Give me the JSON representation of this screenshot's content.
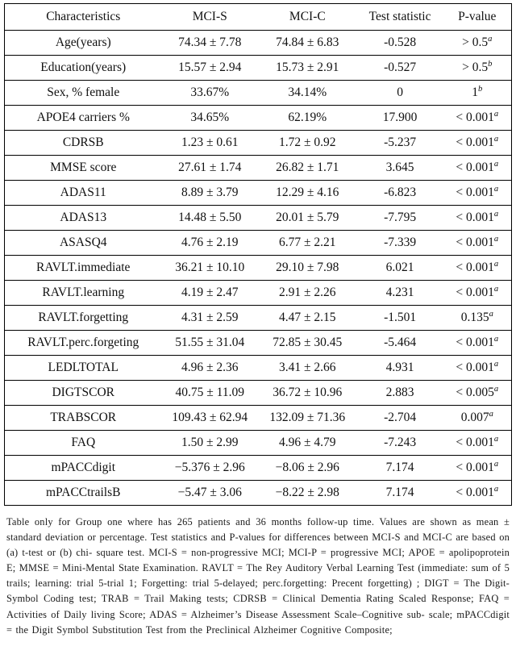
{
  "table": {
    "headers": [
      "Characteristics",
      "MCI-S",
      "MCI-C",
      "Test statistic",
      "P-value"
    ],
    "rows": [
      {
        "label": "Age(years)",
        "mci_s": "74.34 ± 7.78",
        "mci_c": "74.84 ± 6.83",
        "stat": "-0.528",
        "p": "> 0.5",
        "p_sup": "a"
      },
      {
        "label": "Education(years)",
        "mci_s": "15.57 ± 2.94",
        "mci_c": "15.73 ± 2.91",
        "stat": "-0.527",
        "p": "> 0.5",
        "p_sup": "b"
      },
      {
        "label": "Sex, % female",
        "mci_s": "33.67%",
        "mci_c": "34.14%",
        "stat": "0",
        "p": "1",
        "p_sup": "b"
      },
      {
        "label": "APOE4 carriers %",
        "mci_s": "34.65%",
        "mci_c": "62.19%",
        "stat": "17.900",
        "p": "< 0.001",
        "p_sup": "a"
      },
      {
        "label": "CDRSB",
        "mci_s": "1.23 ± 0.61",
        "mci_c": "1.72 ± 0.92",
        "stat": "-5.237",
        "p": "< 0.001",
        "p_sup": "a"
      },
      {
        "label": "MMSE score",
        "mci_s": "27.61 ± 1.74",
        "mci_c": "26.82 ± 1.71",
        "stat": "3.645",
        "p": "< 0.001",
        "p_sup": "a"
      },
      {
        "label": "ADAS11",
        "mci_s": "8.89 ± 3.79",
        "mci_c": "12.29 ± 4.16",
        "stat": "-6.823",
        "p": "< 0.001",
        "p_sup": "a"
      },
      {
        "label": "ADAS13",
        "mci_s": "14.48 ± 5.50",
        "mci_c": "20.01 ± 5.79",
        "stat": "-7.795",
        "p": "< 0.001",
        "p_sup": "a"
      },
      {
        "label": "ASASQ4",
        "mci_s": "4.76 ± 2.19",
        "mci_c": "6.77 ± 2.21",
        "stat": "-7.339",
        "p": "< 0.001",
        "p_sup": "a"
      },
      {
        "label": "RAVLT.immediate",
        "mci_s": "36.21 ± 10.10",
        "mci_c": "29.10 ± 7.98",
        "stat": "6.021",
        "p": "< 0.001",
        "p_sup": "a"
      },
      {
        "label": "RAVLT.learning",
        "mci_s": "4.19 ± 2.47",
        "mci_c": "2.91 ± 2.26",
        "stat": "4.231",
        "p": "< 0.001",
        "p_sup": "a"
      },
      {
        "label": "RAVLT.forgetting",
        "mci_s": "4.31 ± 2.59",
        "mci_c": "4.47 ± 2.15",
        "stat": "-1.501",
        "p": "0.135",
        "p_sup": "a"
      },
      {
        "label": "RAVLT.perc.forgeting",
        "mci_s": "51.55 ± 31.04",
        "mci_c": "72.85 ± 30.45",
        "stat": "-5.464",
        "p": "< 0.001",
        "p_sup": "a"
      },
      {
        "label": "LEDLTOTAL",
        "mci_s": "4.96 ± 2.36",
        "mci_c": "3.41 ± 2.66",
        "stat": "4.931",
        "p": "< 0.001",
        "p_sup": "a"
      },
      {
        "label": "DIGTSCOR",
        "mci_s": "40.75 ± 11.09",
        "mci_c": "36.72 ± 10.96",
        "stat": "2.883",
        "p": "< 0.005",
        "p_sup": "a"
      },
      {
        "label": "TRABSCOR",
        "mci_s": "109.43 ± 62.94",
        "mci_c": "132.09 ± 71.36",
        "stat": "-2.704",
        "p": "0.007",
        "p_sup": "a"
      },
      {
        "label": "FAQ",
        "mci_s": "1.50 ± 2.99",
        "mci_c": "4.96 ± 4.79",
        "stat": "-7.243",
        "p": "< 0.001",
        "p_sup": "a"
      },
      {
        "label": "mPACCdigit",
        "mci_s": "−5.376 ± 2.96",
        "mci_c": "−8.06 ± 2.96",
        "stat": "7.174",
        "p": "< 0.001",
        "p_sup": "a"
      },
      {
        "label": "mPACCtrailsB",
        "mci_s": "−5.47 ± 3.06",
        "mci_c": "−8.22 ± 2.98",
        "stat": "7.174",
        "p": "< 0.001",
        "p_sup": "a"
      }
    ]
  },
  "caption": "Table only for Group one where has 265 patients and 36 months follow-up time. Values are shown as mean ± standard deviation or percentage. Test statistics and P-values for differences between MCI-S and MCI-C are based on (a) t-test or (b) chi- square test. MCI-S = non-progressive MCI; MCI-P = progressive MCI; APOE = apolipoprotein E; MMSE = Mini-Mental State Examination. RAVLT = The Rey Auditory Verbal Learning Test (immediate: sum of 5 trails; learning: trial 5-trial 1; Forgetting: trial 5-delayed; perc.forgetting: Precent forgetting) ; DIGT = The Digit- Symbol Coding test; TRAB = Trail Making tests; CDRSB = Clinical Dementia Rating Scaled Response; FAQ = Activities of Daily living Score; ADAS = Alzheimer’s Disease Assessment Scale–Cognitive sub- scale; mPACCdigit = the Digit Symbol Substitution Test from the Preclinical Alzheimer Cognitive Composite;"
}
